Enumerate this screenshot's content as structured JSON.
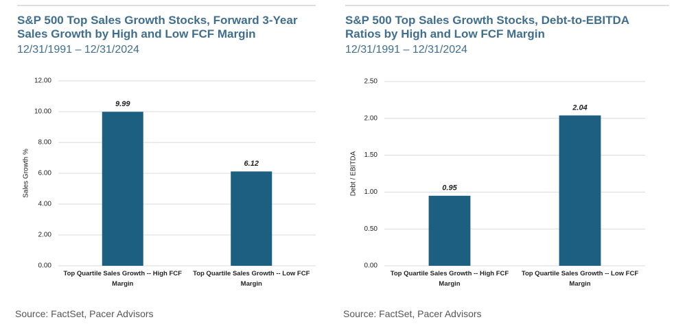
{
  "chart_data": [
    {
      "type": "bar",
      "title": "S&P 500 Top Sales Growth Stocks, Forward 3-Year Sales Growth by High and Low FCF Margin",
      "subtitle": "12/31/1991 – 12/31/2024",
      "y_label": "Sales Growth %",
      "categories": [
        "Top Quartile Sales Growth -- High FCF Margin",
        "Top Quartile Sales Growth -- Low FCF Margin"
      ],
      "values": [
        9.99,
        6.12
      ],
      "color": "#1c5f80",
      "ylim": [
        0,
        12
      ],
      "yticks": [
        {
          "value": 0,
          "label": "0.00"
        },
        {
          "value": 2,
          "label": "2.00"
        },
        {
          "value": 4,
          "label": "4.00"
        },
        {
          "value": 6,
          "label": "6.00"
        },
        {
          "value": 8,
          "label": "8.00"
        },
        {
          "value": 10,
          "label": "10.00"
        },
        {
          "value": 12,
          "label": "12.00"
        }
      ],
      "grid": true,
      "source": "Source: FactSet, Pacer Advisors"
    },
    {
      "type": "bar",
      "title": "S&P 500 Top Sales Growth Stocks, Debt-to-EBITDA Ratios by High and Low FCF Margin",
      "subtitle": "12/31/1991 – 12/31/2024",
      "y_label": "Debt / EBITDA",
      "categories": [
        "Top Quartile Sales Growth -- High FCF Margin",
        "Top Quartile Sales Growth -- Low FCF Margin"
      ],
      "values": [
        0.95,
        2.04
      ],
      "color": "#1c5f80",
      "ylim": [
        0,
        2.5
      ],
      "yticks": [
        {
          "value": 0,
          "label": "0.00"
        },
        {
          "value": 0.5,
          "label": "0.50"
        },
        {
          "value": 1,
          "label": "1.00"
        },
        {
          "value": 1.5,
          "label": "1.50"
        },
        {
          "value": 2,
          "label": "2.00"
        },
        {
          "value": 2.5,
          "label": "2.50"
        }
      ],
      "grid": true,
      "source": "Source: FactSet, Pacer Advisors"
    }
  ]
}
